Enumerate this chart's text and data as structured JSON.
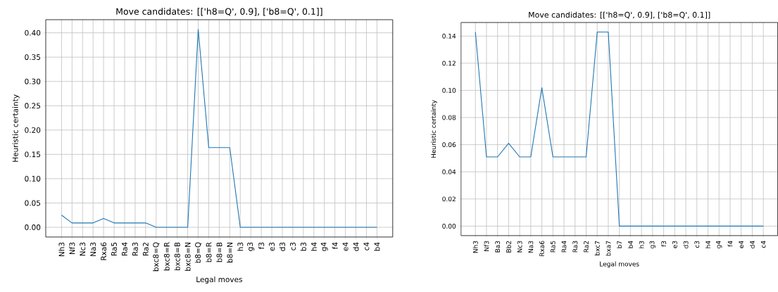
{
  "chart_data": [
    {
      "type": "line",
      "title": "Move candidates: [['h8=Q', 0.9], ['b8=Q', 0.1]]",
      "xlabel": "Legal moves",
      "ylabel": "Heuristic certainty",
      "categories": [
        "Nh3",
        "Nf3",
        "Nc3",
        "Na3",
        "Rxa6",
        "Ra5",
        "Ra4",
        "Ra3",
        "Ra2",
        "bxc8=Q",
        "bxc8=R",
        "bxc8=B",
        "bxc8=N",
        "b8=Q",
        "b8=R",
        "b8=B",
        "b8=N",
        "h3",
        "g3",
        "f3",
        "e3",
        "d3",
        "c3",
        "b3",
        "h4",
        "g4",
        "f4",
        "e4",
        "d4",
        "c4",
        "b4"
      ],
      "series": [
        {
          "color": "#1f77b4",
          "values": [
            0.025,
            0.009,
            0.009,
            0.009,
            0.018,
            0.009,
            0.009,
            0.009,
            0.009,
            0,
            0,
            0,
            0,
            0.407,
            0.164,
            0.164,
            0.164,
            0,
            0,
            0,
            0,
            0,
            0,
            0,
            0,
            0,
            0,
            0,
            0,
            0,
            0
          ]
        }
      ],
      "ylim": [
        -0.02,
        0.427
      ],
      "yticks": [
        {
          "value": 0,
          "label": "0.00"
        },
        {
          "value": 0.05,
          "label": "0.05"
        },
        {
          "value": 0.1,
          "label": "0.10"
        },
        {
          "value": 0.15,
          "label": "0.15"
        },
        {
          "value": 0.2,
          "label": "0.20"
        },
        {
          "value": 0.25,
          "label": "0.25"
        },
        {
          "value": 0.3,
          "label": "0.30"
        },
        {
          "value": 0.35,
          "label": "0.35"
        },
        {
          "value": 0.4,
          "label": "0.40"
        }
      ],
      "grid": true
    },
    {
      "type": "line",
      "title": "Move candidates: [['h8=Q', 0.9], ['b8=Q', 0.1]]",
      "xlabel": "Legal moves",
      "ylabel": "Heuristic certainty",
      "categories": [
        "Nh3",
        "Nf3",
        "Ba3",
        "Bb2",
        "Nc3",
        "Na3",
        "Rxa6",
        "Ra5",
        "Ra4",
        "Ra3",
        "Ra2",
        "bxc7",
        "bxa7",
        "b7",
        "b4",
        "h3",
        "g3",
        "f3",
        "e3",
        "d3",
        "c3",
        "h4",
        "g4",
        "f4",
        "e4",
        "d4",
        "c4"
      ],
      "series": [
        {
          "color": "#1f77b4",
          "values": [
            0.143,
            0.051,
            0.051,
            0.061,
            0.051,
            0.051,
            0.102,
            0.051,
            0.051,
            0.051,
            0.051,
            0.143,
            0.143,
            0,
            0,
            0,
            0,
            0,
            0,
            0,
            0,
            0,
            0,
            0,
            0,
            0,
            0
          ]
        }
      ],
      "ylim": [
        -0.007,
        0.15
      ],
      "yticks": [
        {
          "value": 0,
          "label": "0.00"
        },
        {
          "value": 0.02,
          "label": "0.02"
        },
        {
          "value": 0.04,
          "label": "0.04"
        },
        {
          "value": 0.06,
          "label": "0.06"
        },
        {
          "value": 0.08,
          "label": "0.08"
        },
        {
          "value": 0.1,
          "label": "0.10"
        },
        {
          "value": 0.12,
          "label": "0.12"
        },
        {
          "value": 0.14,
          "label": "0.14"
        }
      ],
      "grid": true
    }
  ]
}
